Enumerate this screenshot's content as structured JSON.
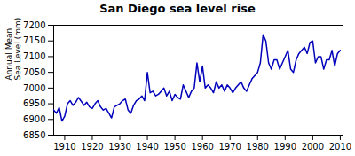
{
  "chart_data": {
    "type": "line",
    "title": "San Diego sea level rise",
    "ylabel": "Annual Mean\nSea Level (mm)",
    "x": [
      1906,
      1907,
      1908,
      1909,
      1910,
      1911,
      1912,
      1913,
      1914,
      1915,
      1916,
      1917,
      1918,
      1919,
      1920,
      1921,
      1922,
      1923,
      1924,
      1925,
      1926,
      1927,
      1928,
      1929,
      1930,
      1931,
      1932,
      1933,
      1934,
      1935,
      1936,
      1937,
      1938,
      1939,
      1940,
      1941,
      1942,
      1943,
      1944,
      1945,
      1946,
      1947,
      1948,
      1949,
      1950,
      1951,
      1952,
      1953,
      1954,
      1955,
      1956,
      1957,
      1958,
      1959,
      1960,
      1961,
      1962,
      1963,
      1964,
      1965,
      1966,
      1967,
      1968,
      1969,
      1970,
      1971,
      1972,
      1973,
      1974,
      1975,
      1976,
      1977,
      1978,
      1979,
      1980,
      1981,
      1982,
      1983,
      1984,
      1985,
      1986,
      1987,
      1988,
      1989,
      1990,
      1991,
      1992,
      1993,
      1994,
      1995,
      1996,
      1997,
      1998,
      1999,
      2000,
      2001,
      2002,
      2003,
      2004,
      2005,
      2006,
      2007,
      2008,
      2009,
      2010
    ],
    "values": [
      6930,
      6920,
      6938,
      6895,
      6910,
      6950,
      6960,
      6945,
      6955,
      6970,
      6958,
      6945,
      6955,
      6940,
      6935,
      6950,
      6960,
      6940,
      6930,
      6935,
      6920,
      6905,
      6940,
      6945,
      6950,
      6960,
      6965,
      6930,
      6920,
      6945,
      6960,
      6965,
      6975,
      6960,
      7050,
      6985,
      6990,
      6975,
      6980,
      6990,
      7000,
      6975,
      6990,
      6960,
      6980,
      6970,
      6965,
      7010,
      6990,
      6970,
      6990,
      7000,
      7080,
      7020,
      7070,
      7000,
      7010,
      7000,
      6985,
      7020,
      7000,
      7010,
      6990,
      7010,
      7000,
      6985,
      7000,
      7010,
      7020,
      7000,
      6990,
      7010,
      7030,
      7040,
      7050,
      7080,
      7170,
      7150,
      7080,
      7060,
      7090,
      7090,
      7060,
      7080,
      7100,
      7120,
      7060,
      7050,
      7090,
      7110,
      7120,
      7130,
      7110,
      7145,
      7150,
      7080,
      7100,
      7100,
      7060,
      7090,
      7090,
      7120,
      7070,
      7110,
      7120
    ],
    "color": "#0000bb",
    "xlim": [
      1906,
      2011
    ],
    "ylim": [
      6850,
      7200
    ],
    "xticks": [
      1910,
      1920,
      1930,
      1940,
      1950,
      1960,
      1970,
      1980,
      1990,
      2000,
      2010
    ],
    "yticks": [
      6850,
      6900,
      6950,
      7000,
      7050,
      7100,
      7150,
      7200
    ],
    "grid": false
  }
}
